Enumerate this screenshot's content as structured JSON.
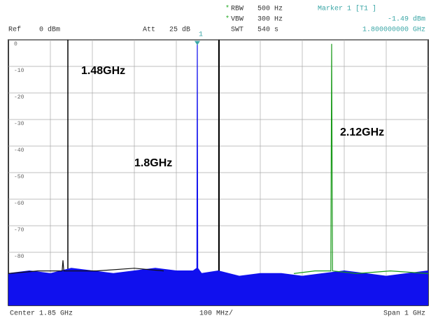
{
  "header": {
    "ref": "Ref",
    "ref_level": "0 dBm",
    "att": "Att",
    "att_value": "25 dB",
    "star1": "*",
    "rbw": "RBW",
    "rbw_value": "500 Hz",
    "star2": "*",
    "vbw": "VBW",
    "vbw_value": "300 Hz",
    "swt": "SWT",
    "swt_value": "540 s",
    "marker_title": "Marker 1 [T1 ]",
    "marker_level": "-1.49 dBm",
    "marker_freq": "1.800000000 GHz"
  },
  "footer": {
    "center": "Center 1.85 GHz",
    "div": "100 MHz/",
    "span": "Span 1 GHz"
  },
  "chart_data": {
    "type": "line",
    "xlim": [
      1350,
      2350
    ],
    "ylim": [
      -100,
      0
    ],
    "yticks": [
      0,
      -10,
      -20,
      -30,
      -40,
      -50,
      -60,
      -70,
      -80
    ],
    "grid": true,
    "annotations": [
      "1.48GHz",
      "1.8GHz",
      "2.12GHz"
    ],
    "marker": {
      "label": "1",
      "x": 1800,
      "value": -1.49,
      "color": "#3aa6a6"
    },
    "series": [
      {
        "color": "#1010ee",
        "fill": true,
        "x": [
          1350,
          1400,
          1450,
          1500,
          1550,
          1600,
          1650,
          1700,
          1750,
          1790,
          1799,
          1800,
          1801,
          1810,
          1850,
          1900,
          1950,
          2000,
          2050,
          2100,
          2150,
          2200,
          2250,
          2300,
          2350
        ],
        "values": [
          -88,
          -87,
          -88,
          -86,
          -87,
          -88,
          -87,
          -86,
          -87,
          -87,
          -86,
          -1.49,
          -86,
          -88,
          -87,
          -89,
          -88,
          -88,
          -89,
          -88,
          -87,
          -88,
          -89,
          -88,
          -87
        ]
      },
      {
        "color": "#111111",
        "fill": false,
        "x": [
          1350,
          1420,
          1478,
          1480,
          1482,
          1560,
          1650,
          1720
        ],
        "values": [
          -88,
          -87,
          -87,
          -83,
          -87,
          -87,
          -86,
          -87
        ]
      },
      {
        "color": "#1a9a1a",
        "fill": false,
        "x": [
          2030,
          2080,
          2118,
          2120,
          2122,
          2180,
          2260,
          2350
        ],
        "values": [
          -88,
          -87,
          -87,
          -1.5,
          -87,
          -88,
          -87,
          -88
        ]
      }
    ]
  }
}
